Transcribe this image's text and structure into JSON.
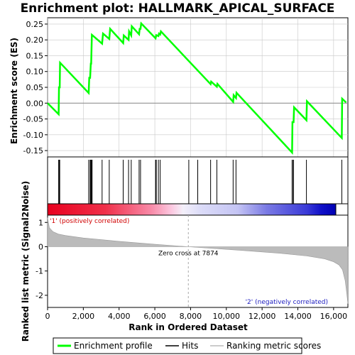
{
  "chart_data": {
    "type": "line",
    "title": "Enrichment plot: HALLMARK_APICAL_SURFACE",
    "xlabel": "Rank in Ordered Dataset",
    "ylabel_top": "Enrichment score (ES)",
    "ylabel_bottom": "Ranked list metric (Signal2Noise)",
    "xlim": [
      0,
      16800
    ],
    "x_ticks": [
      0,
      2000,
      4000,
      6000,
      8000,
      10000,
      12000,
      14000,
      16000
    ],
    "x_tick_labels": [
      "0",
      "2,000",
      "4,000",
      "6,000",
      "8,000",
      "10,000",
      "12,000",
      "14,000",
      "16,000"
    ],
    "es_ylim": [
      -0.17,
      0.27
    ],
    "es_ticks": [
      -0.15,
      -0.1,
      -0.05,
      0.0,
      0.05,
      0.1,
      0.15,
      0.2,
      0.25
    ],
    "es_tick_labels": [
      "-0.15",
      "-0.10",
      "-0.05",
      "0.00",
      "0.05",
      "0.10",
      "0.15",
      "0.20",
      "0.25"
    ],
    "metric_ylim": [
      -2.5,
      1.3
    ],
    "metric_ticks": [
      -2,
      -1,
      0,
      1
    ],
    "metric_tick_labels": [
      "-2",
      "-1",
      "0",
      "1"
    ],
    "enrichment_profile": {
      "name": "Enrichment profile",
      "color": "#00ff00",
      "x": [
        0,
        620,
        640,
        680,
        700,
        2300,
        2330,
        2380,
        2420,
        2440,
        2480,
        3050,
        3100,
        3450,
        3500,
        4230,
        4260,
        4530,
        4560,
        4680,
        4710,
        5120,
        5150,
        5200,
        5240,
        6040,
        6080,
        6200,
        6230,
        6300,
        6340,
        9120,
        9150,
        9470,
        9500,
        10380,
        10410,
        10540,
        10570,
        13680,
        13700,
        13760,
        13790,
        14480,
        14510,
        16460,
        16480,
        16700
      ],
      "y": [
        0.0,
        -0.035,
        0.05,
        0.05,
        0.128,
        0.032,
        0.08,
        0.08,
        0.125,
        0.125,
        0.216,
        0.188,
        0.22,
        0.203,
        0.235,
        0.19,
        0.214,
        0.2,
        0.227,
        0.214,
        0.243,
        0.218,
        0.235,
        0.235,
        0.252,
        0.205,
        0.215,
        0.212,
        0.22,
        0.217,
        0.227,
        0.06,
        0.068,
        0.052,
        0.061,
        0.004,
        0.025,
        0.016,
        0.033,
        -0.156,
        -0.06,
        -0.06,
        -0.013,
        -0.054,
        0.006,
        -0.11,
        0.014,
        0.002
      ]
    },
    "hits_x": [
      620,
      650,
      680,
      2300,
      2380,
      2420,
      2460,
      2490,
      3050,
      3450,
      4230,
      4530,
      4680,
      5120,
      5200,
      6040,
      6080,
      6200,
      6300,
      7900,
      8400,
      9120,
      9470,
      10380,
      10540,
      13680,
      13700,
      13760,
      14480,
      16460
    ],
    "metric_curve": {
      "x": [
        0,
        100,
        300,
        600,
        1000,
        2000,
        4000,
        6000,
        7874,
        9000,
        11000,
        13000,
        14500,
        15500,
        16000,
        16300,
        16500,
        16650,
        16750,
        16800
      ],
      "y": [
        1.2,
        0.78,
        0.62,
        0.52,
        0.46,
        0.36,
        0.22,
        0.1,
        0.0,
        -0.06,
        -0.16,
        -0.27,
        -0.38,
        -0.5,
        -0.62,
        -0.75,
        -0.95,
        -1.4,
        -2.0,
        -2.35
      ]
    },
    "zero_cross_label": "Zero cross at 7874",
    "zero_cross_x": 7874,
    "pos_label": "'1' (positively correlated)",
    "neg_label": "'2' (negatively correlated)",
    "legend": {
      "items": [
        "Enrichment profile",
        "Hits",
        "Ranking metric scores"
      ],
      "colors": [
        "#00ff00",
        "#000000",
        "#bbbbbb"
      ]
    },
    "colors": {
      "pos_text": "#d00000",
      "neg_text": "#2020c0",
      "grid": "#c8c8c8",
      "zero_cross": "#aaaaaa"
    }
  }
}
